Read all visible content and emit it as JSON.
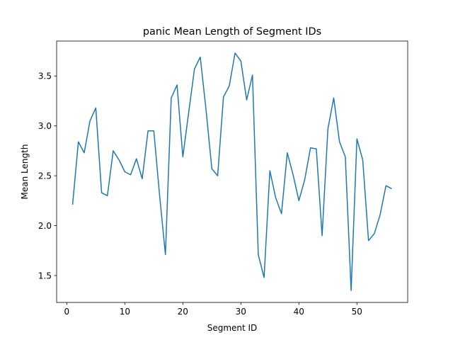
{
  "chart_data": {
    "type": "line",
    "title": "panic Mean Length of Segment IDs",
    "xlabel": "Segment ID",
    "ylabel": "Mean Length",
    "xlim": [
      -1.75,
      58.75
    ],
    "ylim": [
      1.23,
      3.85
    ],
    "xticks": [
      0,
      10,
      20,
      30,
      40,
      50
    ],
    "yticks": [
      1.5,
      2.0,
      2.5,
      3.0,
      3.5
    ],
    "xtick_labels": [
      "0",
      "10",
      "20",
      "30",
      "40",
      "50"
    ],
    "ytick_labels": [
      "1.5",
      "2.0",
      "2.5",
      "3.0",
      "3.5"
    ],
    "grid": false,
    "line_color": "#1f77b4",
    "series": [
      {
        "x": [
          1,
          2,
          3,
          4,
          5,
          6,
          7,
          8,
          9,
          10,
          11,
          12,
          13,
          14,
          15,
          16,
          17,
          18,
          19,
          20,
          21,
          22,
          23,
          24,
          25,
          26,
          27,
          28,
          29,
          30,
          31,
          32,
          33,
          34,
          35,
          36,
          37,
          38,
          39,
          40,
          41,
          42,
          43,
          44,
          45,
          46,
          47,
          48,
          49,
          50,
          51,
          52,
          53,
          54,
          55,
          56
        ],
        "values": [
          2.21,
          2.84,
          2.73,
          3.05,
          3.18,
          2.33,
          2.3,
          2.75,
          2.66,
          2.54,
          2.51,
          2.67,
          2.47,
          2.95,
          2.95,
          2.3,
          1.71,
          3.28,
          3.41,
          2.69,
          3.13,
          3.57,
          3.69,
          3.16,
          2.57,
          2.5,
          3.29,
          3.4,
          3.73,
          3.65,
          3.26,
          3.51,
          1.71,
          1.48,
          2.55,
          2.28,
          2.12,
          2.73,
          2.51,
          2.25,
          2.46,
          2.78,
          2.77,
          1.9,
          2.97,
          3.28,
          2.84,
          2.69,
          1.35,
          2.87,
          2.66,
          1.85,
          1.92,
          2.11,
          2.4,
          2.37
        ]
      }
    ]
  }
}
